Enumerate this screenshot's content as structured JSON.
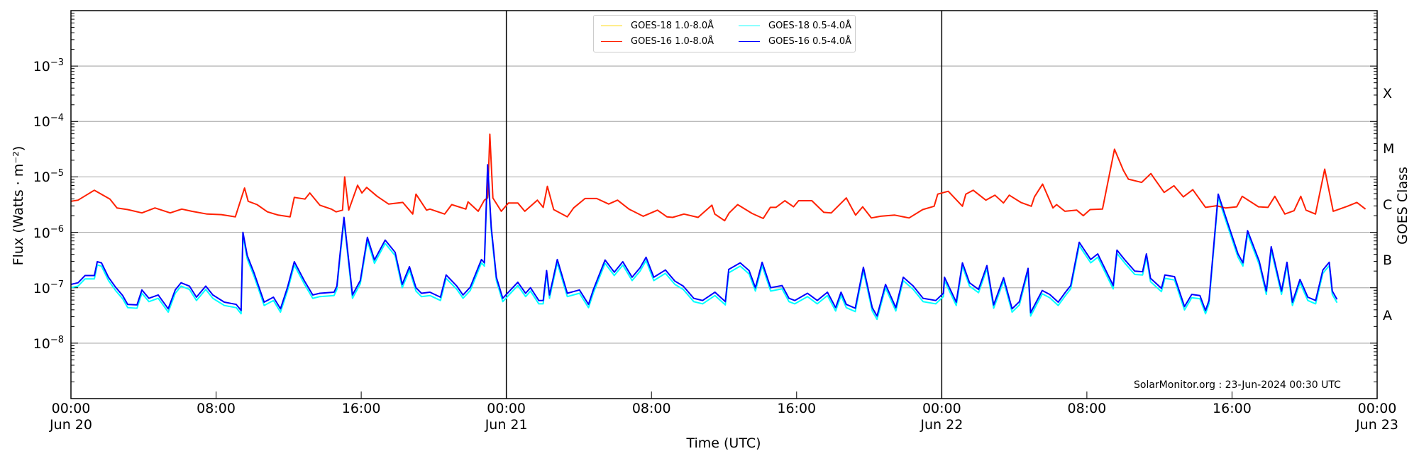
{
  "chart_data": {
    "type": "line",
    "title": "",
    "xlabel": "Time (UTC)",
    "ylabel": "Flux (Watts · m⁻²)",
    "ylabel_right": "GOES Class",
    "yscale": "log",
    "ylim": [
      1e-09,
      0.01
    ],
    "xlim_hours": [
      0,
      72
    ],
    "x_start": "2024-06-20 00:00 UTC",
    "grid": "horizontal at decades",
    "legend_position": "upper center",
    "x_ticks": [
      {
        "hour": 0,
        "label": "00:00",
        "sub": "Jun 20"
      },
      {
        "hour": 8,
        "label": "08:00",
        "sub": ""
      },
      {
        "hour": 16,
        "label": "16:00",
        "sub": ""
      },
      {
        "hour": 24,
        "label": "00:00",
        "sub": "Jun 21"
      },
      {
        "hour": 32,
        "label": "08:00",
        "sub": ""
      },
      {
        "hour": 40,
        "label": "16:00",
        "sub": ""
      },
      {
        "hour": 48,
        "label": "00:00",
        "sub": "Jun 22"
      },
      {
        "hour": 56,
        "label": "08:00",
        "sub": ""
      },
      {
        "hour": 64,
        "label": "16:00",
        "sub": ""
      },
      {
        "hour": 72,
        "label": "00:00",
        "sub": "Jun 23"
      }
    ],
    "day_markers_hours": [
      24,
      48
    ],
    "y_ticks": [
      {
        "exp": -3,
        "label": "10",
        "sup": "−3"
      },
      {
        "exp": -4,
        "label": "10",
        "sup": "−4"
      },
      {
        "exp": -5,
        "label": "10",
        "sup": "−5"
      },
      {
        "exp": -6,
        "label": "10",
        "sup": "−6"
      },
      {
        "exp": -7,
        "label": "10",
        "sup": "−7"
      },
      {
        "exp": -8,
        "label": "10",
        "sup": "−8"
      }
    ],
    "goes_classes": [
      {
        "label": "X",
        "log10_flux": -3.5
      },
      {
        "label": "M",
        "log10_flux": -4.5
      },
      {
        "label": "C",
        "log10_flux": -5.5
      },
      {
        "label": "B",
        "log10_flux": -6.5
      },
      {
        "label": "A",
        "log10_flux": -7.5
      }
    ],
    "annotation": "SolarMonitor.org : 23-Jun-2024 00:30 UTC",
    "series": [
      {
        "name": "GOES-18 1.0-8.0Å",
        "color": "#ffd700",
        "hours": [],
        "log10_flux": []
      },
      {
        "name": "GOES-18 0.5-4.0Å",
        "color": "#00ffff",
        "offset_from": "GOES-16 0.5-4.0Å",
        "note": "tracks GOES-16 0.5-4.0Å, slightly lower at quiet levels",
        "log10_offset": -0.06
      },
      {
        "name": "GOES-16 1.0-8.0Å",
        "color": "#ff2000",
        "hours": [
          0,
          0.39,
          1.29,
          2.15,
          2.54,
          3.13,
          3.91,
          4.63,
          5.47,
          6.11,
          6.66,
          7.5,
          8.29,
          9.06,
          9.57,
          9.77,
          10.26,
          10.83,
          11.43,
          12.08,
          12.31,
          12.9,
          13.17,
          13.72,
          14.35,
          14.62,
          14.97,
          15.09,
          15.31,
          15.8,
          16.04,
          16.3,
          16.88,
          17.51,
          18.29,
          18.84,
          19.02,
          19.6,
          19.79,
          20.6,
          20.99,
          21.77,
          21.89,
          22.45,
          22.79,
          22.97,
          23.09,
          23.26,
          23.72,
          24.12,
          24.63,
          25.02,
          25.71,
          26.03,
          26.26,
          26.61,
          27.36,
          27.71,
          28.34,
          28.98,
          29.64,
          30.13,
          30.76,
          31.54,
          32.33,
          32.85,
          33.17,
          33.79,
          34.57,
          35.33,
          35.49,
          36.03,
          36.28,
          36.75,
          37.55,
          38.16,
          38.55,
          38.86,
          39.35,
          39.83,
          40.11,
          40.84,
          41.5,
          41.91,
          42.74,
          43.25,
          43.64,
          44.12,
          44.63,
          45.41,
          46.2,
          46.95,
          47.58,
          47.78,
          48.36,
          49.14,
          49.33,
          49.73,
          50.43,
          50.93,
          51.4,
          51.72,
          52.36,
          52.94,
          53.11,
          53.56,
          54.13,
          54.33,
          54.79,
          55.44,
          55.8,
          56.18,
          56.86,
          57.52,
          58.01,
          58.29,
          59.02,
          59.53,
          59.72,
          60.26,
          60.8,
          61.32,
          61.84,
          62.54,
          63.15,
          63.64,
          64.26,
          64.56,
          65.46,
          65.98,
          66.36,
          66.91,
          67.42,
          67.79,
          68.08,
          68.6,
          69.11,
          69.58,
          70.36,
          70.88,
          71.36
        ],
        "log10_flux": [
          -5.44,
          -5.42,
          -5.24,
          -5.4,
          -5.56,
          -5.59,
          -5.65,
          -5.56,
          -5.65,
          -5.58,
          -5.62,
          -5.67,
          -5.68,
          -5.72,
          -5.2,
          -5.44,
          -5.5,
          -5.63,
          -5.69,
          -5.72,
          -5.37,
          -5.4,
          -5.29,
          -5.51,
          -5.58,
          -5.63,
          -5.6,
          -5.0,
          -5.6,
          -5.15,
          -5.29,
          -5.19,
          -5.35,
          -5.49,
          -5.46,
          -5.67,
          -5.31,
          -5.6,
          -5.58,
          -5.67,
          -5.5,
          -5.58,
          -5.45,
          -5.62,
          -5.42,
          -5.38,
          -4.23,
          -5.38,
          -5.62,
          -5.47,
          -5.47,
          -5.62,
          -5.42,
          -5.55,
          -5.17,
          -5.59,
          -5.72,
          -5.56,
          -5.39,
          -5.39,
          -5.49,
          -5.42,
          -5.58,
          -5.71,
          -5.6,
          -5.72,
          -5.73,
          -5.67,
          -5.73,
          -5.51,
          -5.67,
          -5.79,
          -5.65,
          -5.5,
          -5.66,
          -5.75,
          -5.55,
          -5.55,
          -5.43,
          -5.54,
          -5.43,
          -5.43,
          -5.64,
          -5.65,
          -5.38,
          -5.69,
          -5.54,
          -5.74,
          -5.71,
          -5.69,
          -5.74,
          -5.59,
          -5.53,
          -5.31,
          -5.26,
          -5.53,
          -5.31,
          -5.24,
          -5.42,
          -5.33,
          -5.47,
          -5.33,
          -5.46,
          -5.53,
          -5.36,
          -5.13,
          -5.56,
          -5.5,
          -5.62,
          -5.6,
          -5.7,
          -5.59,
          -5.58,
          -4.5,
          -4.88,
          -5.04,
          -5.1,
          -4.94,
          -5.03,
          -5.28,
          -5.16,
          -5.36,
          -5.23,
          -5.55,
          -5.52,
          -5.56,
          -5.54,
          -5.35,
          -5.54,
          -5.55,
          -5.35,
          -5.67,
          -5.61,
          -5.35,
          -5.6,
          -5.67,
          -4.86,
          -5.62,
          -5.53,
          -5.46,
          -5.58,
          -5.56,
          -5.63
        ]
      },
      {
        "name": "GOES-16 0.5-4.0Å",
        "color": "#0000ff",
        "hours": [
          0,
          0.39,
          0.78,
          1.29,
          1.45,
          1.68,
          2.07,
          2.46,
          2.85,
          3.13,
          3.64,
          3.91,
          4.3,
          4.81,
          5.36,
          5.75,
          6.07,
          6.53,
          6.92,
          7.43,
          7.82,
          8.45,
          9.11,
          9.38,
          9.48,
          9.72,
          10.1,
          10.65,
          11.16,
          11.55,
          11.94,
          12.31,
          12.86,
          13.33,
          13.72,
          14.5,
          14.66,
          14.82,
          15.05,
          15.52,
          15.95,
          16.34,
          16.73,
          17.32,
          17.87,
          18.26,
          18.66,
          19.02,
          19.32,
          19.79,
          20.37,
          20.68,
          21.27,
          21.61,
          22.01,
          22.63,
          22.79,
          22.97,
          23.17,
          23.45,
          23.8,
          24.63,
          25.06,
          25.33,
          25.79,
          26.03,
          26.22,
          26.38,
          26.81,
          27.36,
          28.03,
          28.53,
          28.8,
          29.44,
          29.95,
          30.42,
          30.93,
          31.37,
          31.7,
          32.13,
          32.77,
          33.29,
          33.75,
          34.33,
          34.82,
          35.5,
          36.07,
          36.26,
          36.89,
          37.38,
          37.73,
          38.1,
          38.57,
          39.2,
          39.58,
          39.9,
          40.6,
          41.14,
          41.7,
          42.15,
          42.45,
          42.74,
          43.23,
          43.68,
          44.17,
          44.43,
          44.9,
          45.47,
          45.88,
          46.43,
          46.97,
          47.67,
          48.09,
          48.15,
          48.8,
          49.14,
          49.53,
          50.03,
          50.49,
          50.86,
          51.41,
          51.88,
          52.28,
          52.76,
          52.9,
          53.54,
          53.95,
          54.42,
          54.82,
          55.11,
          55.58,
          56.21,
          56.6,
          57.45,
          57.66,
          58.1,
          58.64,
          59.07,
          59.28,
          59.51,
          60.11,
          60.3,
          60.83,
          61.38,
          61.78,
          62.23,
          62.54,
          62.73,
          63.24,
          63.65,
          64.33,
          64.6,
          64.86,
          65.5,
          65.89,
          66.16,
          66.73,
          67.03,
          67.33,
          67.75,
          68.18,
          68.61,
          69.01,
          69.36,
          69.53,
          69.79
        ],
        "log10_flux": [
          -6.94,
          -6.91,
          -6.78,
          -6.78,
          -6.53,
          -6.55,
          -6.81,
          -6.99,
          -7.14,
          -7.3,
          -7.31,
          -7.04,
          -7.19,
          -7.13,
          -7.38,
          -7.04,
          -6.91,
          -6.97,
          -7.17,
          -6.97,
          -7.13,
          -7.26,
          -7.3,
          -7.41,
          -6.0,
          -6.42,
          -6.74,
          -7.26,
          -7.17,
          -7.38,
          -6.99,
          -6.53,
          -6.87,
          -7.13,
          -7.1,
          -7.08,
          -6.97,
          -6.44,
          -5.73,
          -7.13,
          -6.87,
          -6.09,
          -6.5,
          -6.14,
          -6.36,
          -6.94,
          -6.62,
          -7.0,
          -7.1,
          -7.08,
          -7.17,
          -6.77,
          -6.97,
          -7.13,
          -6.99,
          -6.49,
          -6.55,
          -4.78,
          -5.91,
          -6.81,
          -7.19,
          -6.9,
          -7.1,
          -7.0,
          -7.23,
          -7.23,
          -6.69,
          -7.13,
          -6.49,
          -7.1,
          -7.04,
          -7.3,
          -7.03,
          -6.5,
          -6.72,
          -6.53,
          -6.81,
          -6.64,
          -6.45,
          -6.81,
          -6.68,
          -6.88,
          -6.97,
          -7.19,
          -7.23,
          -7.08,
          -7.25,
          -6.67,
          -6.55,
          -6.69,
          -7.0,
          -6.54,
          -7.0,
          -6.96,
          -7.19,
          -7.23,
          -7.1,
          -7.23,
          -7.08,
          -7.36,
          -7.08,
          -7.3,
          -7.37,
          -6.63,
          -7.36,
          -7.51,
          -6.94,
          -7.36,
          -6.81,
          -6.97,
          -7.19,
          -7.23,
          -7.1,
          -6.81,
          -7.26,
          -6.55,
          -6.91,
          -7.03,
          -6.6,
          -7.31,
          -6.82,
          -7.38,
          -7.25,
          -6.65,
          -7.45,
          -7.05,
          -7.12,
          -7.26,
          -7.08,
          -6.96,
          -6.18,
          -6.49,
          -6.39,
          -6.96,
          -6.32,
          -6.5,
          -6.7,
          -6.71,
          -6.39,
          -6.83,
          -7.01,
          -6.77,
          -6.8,
          -7.34,
          -7.12,
          -7.14,
          -7.41,
          -7.23,
          -5.31,
          -5.72,
          -6.39,
          -6.55,
          -5.97,
          -6.52,
          -7.06,
          -6.26,
          -7.06,
          -6.54,
          -7.26,
          -6.85,
          -7.17,
          -7.23,
          -6.68,
          -6.54,
          -7.06,
          -7.21,
          -7.06,
          -6.65,
          -7.13,
          -6.99,
          -6.09,
          -6.35,
          -7.04,
          -6.68,
          -6.89,
          -6.73,
          -6.99,
          -6.56,
          -7.08,
          -6.86,
          -7.31
        ]
      }
    ]
  },
  "legend": {
    "items": [
      {
        "label": "GOES-18 1.0-8.0Å",
        "color": "#ffd700"
      },
      {
        "label": "GOES-18 0.5-4.0Å",
        "color": "#00ffff"
      },
      {
        "label": "GOES-16 1.0-8.0Å",
        "color": "#ff2000"
      },
      {
        "label": "GOES-16 0.5-4.0Å",
        "color": "#0000ff"
      }
    ]
  },
  "labels": {
    "ylabel": "Flux (Watts · m⁻²)",
    "ylabel_right": "GOES Class",
    "xlabel": "Time (UTC)",
    "credit": "SolarMonitor.org : 23-Jun-2024 00:30 UTC"
  }
}
